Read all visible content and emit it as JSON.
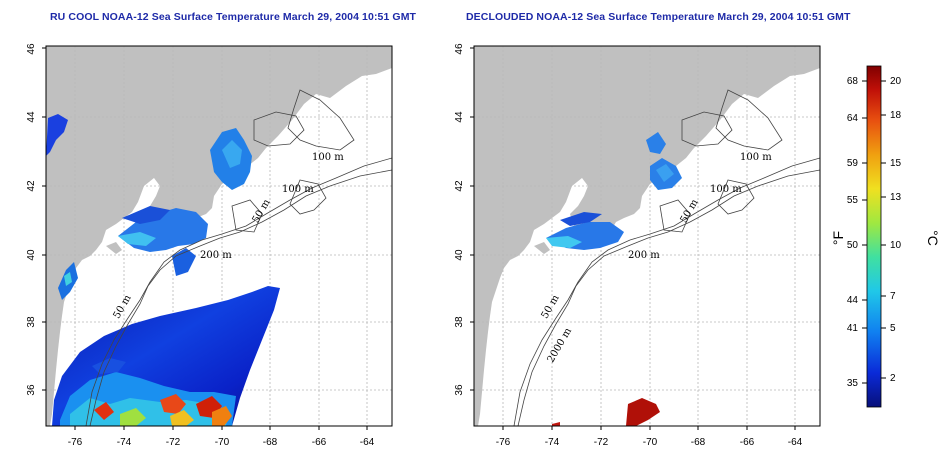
{
  "left_panel": {
    "title": "RU COOL NOAA-12 Sea Surface Temperature March 29, 2004 10:51 GMT"
  },
  "right_panel": {
    "title": "DECLOUDED NOAA-12 Sea Surface Temperature March 29, 2004 10:51 GMT"
  },
  "axes": {
    "x_ticks": [
      "-76",
      "-74",
      "-72",
      "-70",
      "-68",
      "-66",
      "-64"
    ],
    "y_ticks": [
      "36",
      "38",
      "40",
      "42",
      "44",
      "46"
    ],
    "lon_range": [
      -77,
      -63
    ],
    "lat_range": [
      35,
      46
    ]
  },
  "contour_labels": {
    "left": [
      "100 m",
      "100 m",
      "50 m",
      "200 m",
      "50 m"
    ],
    "right": [
      "100 m",
      "100 m",
      "50 m",
      "200 m",
      "50 m",
      "2000 m"
    ]
  },
  "colorbar": {
    "fahrenheit_label": "°F",
    "celsius_label": "°C",
    "fahrenheit_ticks": [
      "68",
      "64",
      "59",
      "55",
      "50",
      "44",
      "41",
      "35"
    ],
    "celsius_ticks": [
      "20",
      "18",
      "15",
      "13",
      "10",
      "7",
      "5",
      "2"
    ],
    "colors": [
      "#08107a",
      "#0a2ad8",
      "#1080f0",
      "#20c8e8",
      "#40e0a0",
      "#a0e840",
      "#f0e020",
      "#f0a010",
      "#e85010",
      "#c01008",
      "#800000"
    ]
  },
  "colors": {
    "land": "#c0c0c0",
    "ocean": "#ffffff",
    "title": "#1e2aa8"
  }
}
